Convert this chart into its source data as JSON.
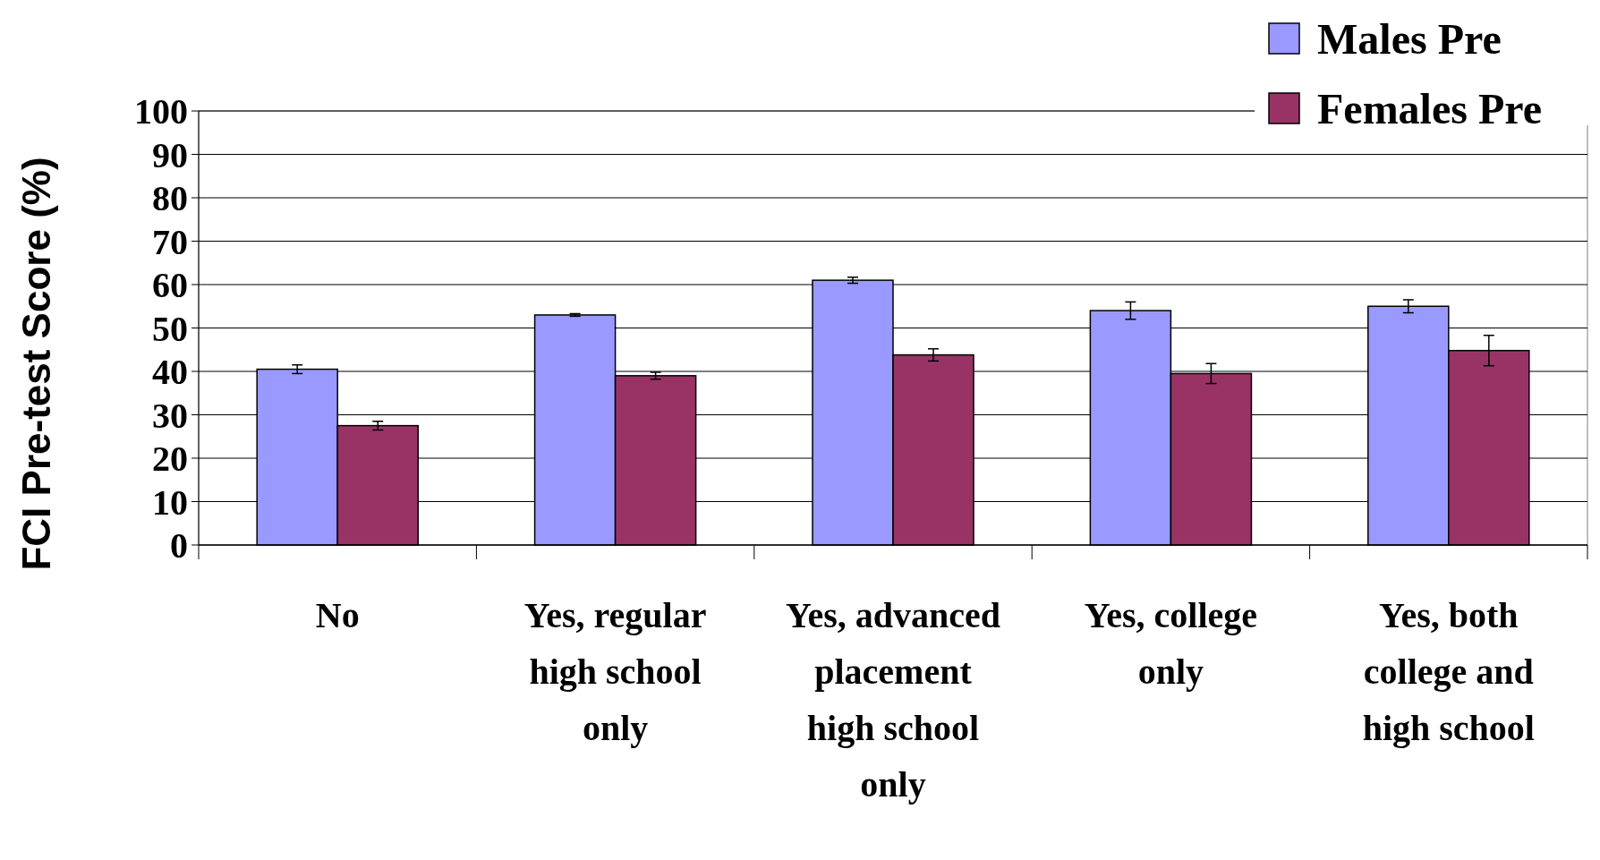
{
  "chart_data": {
    "type": "bar",
    "ylabel": "FCI Pre-test Score (%)",
    "categories": [
      "No",
      "Yes, regular high school only",
      "Yes, advanced placement high school only",
      "Yes, college only",
      "Yes, both college and high school"
    ],
    "series": [
      {
        "name": "Males Pre",
        "color": "#9999ff",
        "values": [
          40.5,
          53,
          61,
          54,
          55
        ],
        "errors": [
          1,
          0.3,
          0.7,
          2,
          1.5
        ]
      },
      {
        "name": "Females Pre",
        "color": "#993366",
        "values": [
          27.5,
          39,
          43.8,
          39.5,
          44.8
        ],
        "errors": [
          1,
          0.8,
          1.4,
          2.3,
          3.5
        ]
      }
    ],
    "ylim": [
      0,
      100
    ],
    "yticks": [
      0,
      10,
      20,
      30,
      40,
      50,
      60,
      70,
      80,
      90,
      100
    ],
    "grid": "y",
    "legend": "top right"
  }
}
